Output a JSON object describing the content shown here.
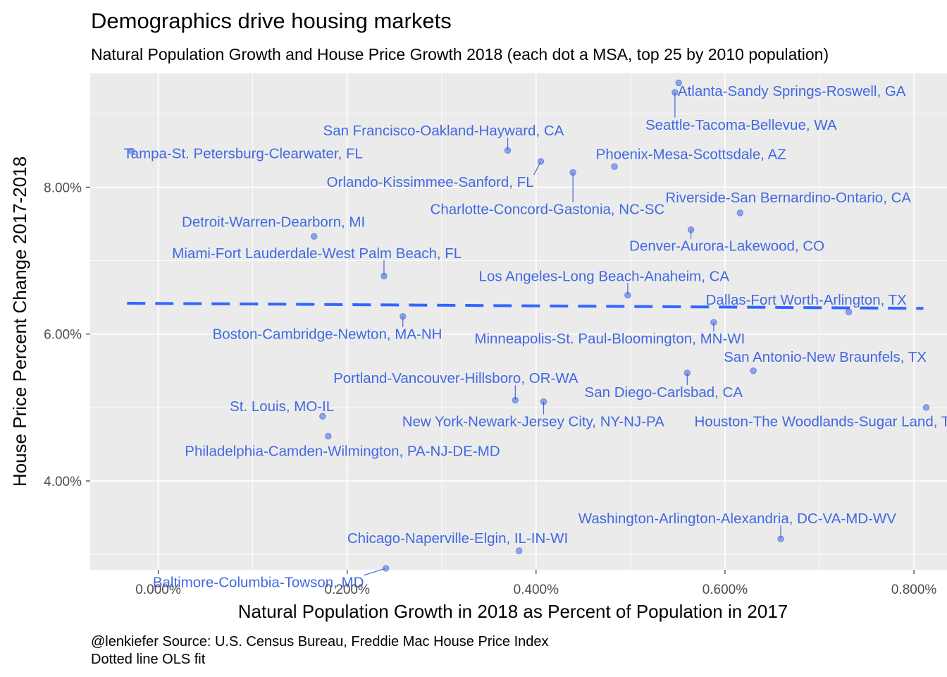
{
  "chart_data": {
    "type": "scatter",
    "title": "Demographics drive housing markets",
    "subtitle": "Natural Population Growth and House Price Growth 2018 (each dot a MSA, top 25 by 2010 population)",
    "xlabel": "Natural Population Growth in 2018 as Percent of Population in 2017",
    "ylabel": "House Price Percent Change 2017-2018",
    "caption_lines": [
      "@lenkiefer Source: U.S. Census Bureau, Freddie Mac House Price Index",
      "Dotted line OLS fit"
    ],
    "xlim": [
      -0.00072,
      0.00835
    ],
    "ylim": [
      0.0279,
      0.0955
    ],
    "x_ticks": [
      {
        "value": 0.0,
        "label": "0.000%"
      },
      {
        "value": 0.002,
        "label": "0.200%"
      },
      {
        "value": 0.004,
        "label": "0.400%"
      },
      {
        "value": 0.006,
        "label": "0.600%"
      },
      {
        "value": 0.008,
        "label": "0.800%"
      }
    ],
    "y_ticks": [
      {
        "value": 0.04,
        "label": "4.00%"
      },
      {
        "value": 0.06,
        "label": "6.00%"
      },
      {
        "value": 0.08,
        "label": "8.00%"
      }
    ],
    "grid": true,
    "colors": {
      "panel": "#ebebeb",
      "grid_major": "#ffffff",
      "point": "#4169e1",
      "fit_line": "#3366ff",
      "label": "#4169e1"
    },
    "fit_line": {
      "style": "dashed",
      "x": [
        -0.00033,
        0.0081
      ],
      "y": [
        0.0642,
        0.0635
      ]
    },
    "points": [
      {
        "name": "Atlanta-Sandy Springs-Roswell, GA",
        "x": 0.00551,
        "y": 0.0942,
        "lx": 0.0055,
        "ly": 0.0931,
        "anchor": "start"
      },
      {
        "name": "Seattle-Tacoma-Bellevue, WA",
        "x": 0.00547,
        "y": 0.0929,
        "lx": 0.00617,
        "ly": 0.0885,
        "anchor": "middle"
      },
      {
        "name": "San Francisco-Oakland-Hayward, CA",
        "x": 0.0037,
        "y": 0.085,
        "lx": 0.00302,
        "ly": 0.0877,
        "anchor": "middle"
      },
      {
        "name": "Tampa-St. Petersburg-Clearwater, FL",
        "x": -0.00028,
        "y": 0.0849,
        "lx": 0.0009,
        "ly": 0.0846,
        "anchor": "middle"
      },
      {
        "name": "Phoenix-Mesa-Scottsdale, AZ",
        "x": 0.00483,
        "y": 0.0828,
        "lx": 0.00564,
        "ly": 0.0845,
        "anchor": "middle"
      },
      {
        "name": "Orlando-Kissimmee-Sanford, FL",
        "x": 0.00405,
        "y": 0.0835,
        "lx": 0.00288,
        "ly": 0.0807,
        "anchor": "middle"
      },
      {
        "name": "Charlotte-Concord-Gastonia, NC-SC",
        "x": 0.00439,
        "y": 0.082,
        "lx": 0.00412,
        "ly": 0.077,
        "anchor": "middle"
      },
      {
        "name": "Riverside-San Bernardino-Ontario, CA",
        "x": 0.00616,
        "y": 0.0765,
        "lx": 0.00667,
        "ly": 0.0786,
        "anchor": "middle"
      },
      {
        "name": "Denver-Aurora-Lakewood, CO",
        "x": 0.00564,
        "y": 0.0742,
        "lx": 0.00602,
        "ly": 0.072,
        "anchor": "middle"
      },
      {
        "name": "Detroit-Warren-Dearborn, MI",
        "x": 0.00165,
        "y": 0.0733,
        "lx": 0.00122,
        "ly": 0.0753,
        "anchor": "middle"
      },
      {
        "name": "Miami-Fort Lauderdale-West Palm Beach, FL",
        "x": 0.00239,
        "y": 0.0679,
        "lx": 0.00168,
        "ly": 0.071,
        "anchor": "middle"
      },
      {
        "name": "Los Angeles-Long Beach-Anaheim, CA",
        "x": 0.00497,
        "y": 0.0653,
        "lx": 0.00472,
        "ly": 0.0679,
        "anchor": "middle"
      },
      {
        "name": "Dallas-Fort Worth-Arlington, TX",
        "x": 0.00731,
        "y": 0.063,
        "lx": 0.00686,
        "ly": 0.0647,
        "anchor": "middle"
      },
      {
        "name": "Boston-Cambridge-Newton, MA-NH",
        "x": 0.00259,
        "y": 0.0624,
        "lx": 0.00179,
        "ly": 0.06,
        "anchor": "middle"
      },
      {
        "name": "Minneapolis-St. Paul-Bloomington, MN-WI",
        "x": 0.00588,
        "y": 0.0616,
        "lx": 0.00478,
        "ly": 0.0594,
        "anchor": "middle"
      },
      {
        "name": "San Antonio-New Braunfels, TX",
        "x": 0.0063,
        "y": 0.055,
        "lx": 0.00706,
        "ly": 0.0569,
        "anchor": "middle"
      },
      {
        "name": "San Diego-Carlsbad, CA",
        "x": 0.0056,
        "y": 0.0547,
        "lx": 0.00535,
        "ly": 0.0521,
        "anchor": "middle"
      },
      {
        "name": "Portland-Vancouver-Hillsboro, OR-WA",
        "x": 0.00378,
        "y": 0.051,
        "lx": 0.00315,
        "ly": 0.054,
        "anchor": "middle"
      },
      {
        "name": "New York-Newark-Jersey City, NY-NJ-PA",
        "x": 0.00408,
        "y": 0.0508,
        "lx": 0.00397,
        "ly": 0.0481,
        "anchor": "middle"
      },
      {
        "name": "Houston-The Woodlands-Sugar Land, TX",
        "x": 0.00813,
        "y": 0.05,
        "lx": 0.00708,
        "ly": 0.0481,
        "anchor": "middle"
      },
      {
        "name": "St. Louis, MO-IL",
        "x": 0.00174,
        "y": 0.0488,
        "lx": 0.00131,
        "ly": 0.0502,
        "anchor": "middle"
      },
      {
        "name": "Philadelphia-Camden-Wilmington, PA-NJ-DE-MD",
        "x": 0.0018,
        "y": 0.0461,
        "lx": 0.00195,
        "ly": 0.0441,
        "anchor": "middle"
      },
      {
        "name": "Washington-Arlington-Alexandria, DC-VA-MD-WV",
        "x": 0.00659,
        "y": 0.0321,
        "lx": 0.00613,
        "ly": 0.0349,
        "anchor": "middle"
      },
      {
        "name": "Chicago-Naperville-Elgin, IL-IN-WI",
        "x": 0.00382,
        "y": 0.0305,
        "lx": 0.00317,
        "ly": 0.0322,
        "anchor": "middle"
      },
      {
        "name": "Baltimore-Columbia-Towson, MD",
        "x": 0.00241,
        "y": 0.0281,
        "lx": 0.00106,
        "ly": 0.0262,
        "anchor": "middle"
      }
    ]
  }
}
